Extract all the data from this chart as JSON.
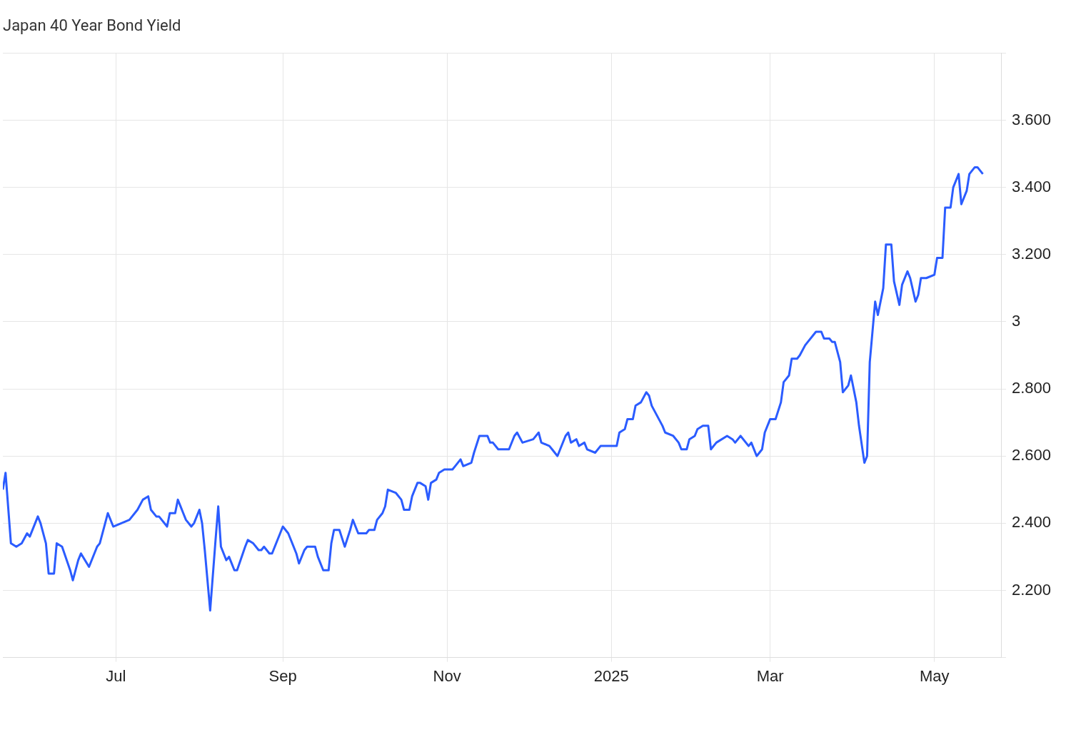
{
  "chart_data": {
    "type": "line",
    "title": "Japan 40 Year Bond Yield",
    "color": "#2b5cff",
    "marker": "none",
    "line_style": "solid",
    "grid": true,
    "xlim": [
      "2024-05-20",
      "2025-05-26"
    ],
    "xticks": [
      {
        "value": "2024-07-01",
        "label": "Jul"
      },
      {
        "value": "2024-09-01",
        "label": "Sep"
      },
      {
        "value": "2024-11-01",
        "label": "Nov"
      },
      {
        "value": "2025-01-01",
        "label": "2025"
      },
      {
        "value": "2025-03-01",
        "label": "Mar"
      },
      {
        "value": "2025-05-01",
        "label": "May"
      }
    ],
    "ylim": [
      2.0,
      3.8
    ],
    "yticks": [
      {
        "value": 2.0,
        "label": null
      },
      {
        "value": 2.2,
        "label": "2.200"
      },
      {
        "value": 2.4,
        "label": "2.400"
      },
      {
        "value": 2.6,
        "label": "2.600"
      },
      {
        "value": 2.8,
        "label": "2.800"
      },
      3,
      {
        "value": 3.2,
        "label": "3.200"
      },
      {
        "value": 3.4,
        "label": "3.400"
      },
      {
        "value": 3.6,
        "label": "3.600"
      },
      {
        "value": 3.8,
        "label": null
      }
    ],
    "x": [
      "2024-05-20",
      "2024-05-21",
      "2024-05-23",
      "2024-05-25",
      "2024-05-27",
      "2024-05-29",
      "2024-05-30",
      "2024-06-02",
      "2024-06-03",
      "2024-06-05",
      "2024-06-06",
      "2024-06-08",
      "2024-06-09",
      "2024-06-11",
      "2024-06-14",
      "2024-06-15",
      "2024-06-17",
      "2024-06-18",
      "2024-06-21",
      "2024-06-24",
      "2024-06-25",
      "2024-06-27",
      "2024-06-28",
      "2024-06-30",
      "2024-07-03",
      "2024-07-06",
      "2024-07-09",
      "2024-07-11",
      "2024-07-13",
      "2024-07-14",
      "2024-07-16",
      "2024-07-17",
      "2024-07-20",
      "2024-07-21",
      "2024-07-23",
      "2024-07-24",
      "2024-07-26",
      "2024-07-27",
      "2024-07-29",
      "2024-07-30",
      "2024-08-01",
      "2024-08-02",
      "2024-08-03",
      "2024-08-05",
      "2024-08-07",
      "2024-08-08",
      "2024-08-09",
      "2024-08-11",
      "2024-08-12",
      "2024-08-14",
      "2024-08-15",
      "2024-08-18",
      "2024-08-19",
      "2024-08-21",
      "2024-08-23",
      "2024-08-24",
      "2024-08-25",
      "2024-08-27",
      "2024-08-28",
      "2024-08-31",
      "2024-09-01",
      "2024-09-03",
      "2024-09-06",
      "2024-09-07",
      "2024-09-09",
      "2024-09-10",
      "2024-09-12",
      "2024-09-13",
      "2024-09-14",
      "2024-09-16",
      "2024-09-18",
      "2024-09-19",
      "2024-09-20",
      "2024-09-22",
      "2024-09-24",
      "2024-09-26",
      "2024-09-27",
      "2024-09-29",
      "2024-10-02",
      "2024-10-03",
      "2024-10-05",
      "2024-10-06",
      "2024-10-08",
      "2024-10-09",
      "2024-10-10",
      "2024-10-13",
      "2024-10-15",
      "2024-10-16",
      "2024-10-18",
      "2024-10-19",
      "2024-10-21",
      "2024-10-22",
      "2024-10-24",
      "2024-10-25",
      "2024-10-26",
      "2024-10-28",
      "2024-10-29",
      "2024-10-31",
      "2024-11-03",
      "2024-11-04",
      "2024-11-06",
      "2024-11-07",
      "2024-11-10",
      "2024-11-11",
      "2024-11-13",
      "2024-11-14",
      "2024-11-16",
      "2024-11-17",
      "2024-11-18",
      "2024-11-20",
      "2024-11-21",
      "2024-11-24",
      "2024-11-26",
      "2024-11-27",
      "2024-11-29",
      "2024-12-03",
      "2024-12-05",
      "2024-12-06",
      "2024-12-09",
      "2024-12-10",
      "2024-12-12",
      "2024-12-13",
      "2024-12-15",
      "2024-12-16",
      "2024-12-17",
      "2024-12-19",
      "2024-12-20",
      "2024-12-22",
      "2024-12-23",
      "2024-12-26",
      "2024-12-28",
      "2025-01-03",
      "2025-01-04",
      "2025-01-06",
      "2025-01-07",
      "2025-01-09",
      "2025-01-10",
      "2025-01-12",
      "2025-01-14",
      "2025-01-15",
      "2025-01-16",
      "2025-01-20",
      "2025-01-21",
      "2025-01-24",
      "2025-01-26",
      "2025-01-27",
      "2025-01-29",
      "2025-01-30",
      "2025-02-01",
      "2025-02-02",
      "2025-02-04",
      "2025-02-06",
      "2025-02-07",
      "2025-02-09",
      "2025-02-13",
      "2025-02-15",
      "2025-02-16",
      "2025-02-18",
      "2025-02-21",
      "2025-02-22",
      "2025-02-24",
      "2025-02-26",
      "2025-02-27",
      "2025-03-01",
      "2025-03-03",
      "2025-03-05",
      "2025-03-06",
      "2025-03-08",
      "2025-03-09",
      "2025-03-11",
      "2025-03-12",
      "2025-03-14",
      "2025-03-15",
      "2025-03-17",
      "2025-03-18",
      "2025-03-20",
      "2025-03-21",
      "2025-03-23",
      "2025-03-24",
      "2025-03-25",
      "2025-03-27",
      "2025-03-28",
      "2025-03-30",
      "2025-03-31",
      "2025-04-02",
      "2025-04-03",
      "2025-04-05",
      "2025-04-06",
      "2025-04-07",
      "2025-04-09",
      "2025-04-10",
      "2025-04-12",
      "2025-04-13",
      "2025-04-15",
      "2025-04-16",
      "2025-04-18",
      "2025-04-19",
      "2025-04-21",
      "2025-04-22",
      "2025-04-24",
      "2025-04-25",
      "2025-04-26",
      "2025-04-28",
      "2025-05-01",
      "2025-05-02",
      "2025-05-04",
      "2025-05-05",
      "2025-05-07",
      "2025-05-08",
      "2025-05-10",
      "2025-05-11",
      "2025-05-13",
      "2025-05-14",
      "2025-05-16",
      "2025-05-17",
      "2025-05-19"
    ],
    "values": [
      2.5,
      2.55,
      2.34,
      2.33,
      2.34,
      2.37,
      2.36,
      2.42,
      2.4,
      2.34,
      2.25,
      2.25,
      2.34,
      2.33,
      2.26,
      2.23,
      2.29,
      2.31,
      2.27,
      2.33,
      2.34,
      2.4,
      2.43,
      2.39,
      2.4,
      2.41,
      2.44,
      2.47,
      2.48,
      2.44,
      2.42,
      2.42,
      2.39,
      2.43,
      2.43,
      2.47,
      2.43,
      2.41,
      2.39,
      2.4,
      2.44,
      2.4,
      2.32,
      2.14,
      2.35,
      2.45,
      2.33,
      2.29,
      2.3,
      2.26,
      2.26,
      2.33,
      2.35,
      2.34,
      2.32,
      2.32,
      2.33,
      2.31,
      2.31,
      2.37,
      2.39,
      2.37,
      2.31,
      2.28,
      2.32,
      2.33,
      2.33,
      2.33,
      2.3,
      2.26,
      2.26,
      2.34,
      2.38,
      2.38,
      2.33,
      2.38,
      2.41,
      2.37,
      2.37,
      2.38,
      2.38,
      2.41,
      2.43,
      2.45,
      2.5,
      2.49,
      2.47,
      2.44,
      2.44,
      2.48,
      2.52,
      2.52,
      2.51,
      2.47,
      2.52,
      2.53,
      2.55,
      2.56,
      2.56,
      2.57,
      2.59,
      2.57,
      2.58,
      2.61,
      2.66,
      2.66,
      2.66,
      2.64,
      2.64,
      2.62,
      2.62,
      2.62,
      2.66,
      2.67,
      2.64,
      2.65,
      2.67,
      2.64,
      2.63,
      2.62,
      2.6,
      2.62,
      2.66,
      2.67,
      2.64,
      2.65,
      2.63,
      2.64,
      2.62,
      2.61,
      2.63,
      2.63,
      2.67,
      2.68,
      2.71,
      2.71,
      2.75,
      2.76,
      2.79,
      2.78,
      2.75,
      2.69,
      2.67,
      2.66,
      2.64,
      2.62,
      2.62,
      2.65,
      2.66,
      2.68,
      2.69,
      2.69,
      2.62,
      2.64,
      2.66,
      2.65,
      2.64,
      2.66,
      2.63,
      2.64,
      2.6,
      2.62,
      2.67,
      2.71,
      2.71,
      2.76,
      2.82,
      2.84,
      2.89,
      2.89,
      2.9,
      2.93,
      2.94,
      2.96,
      2.97,
      2.97,
      2.95,
      2.95,
      2.94,
      2.94,
      2.88,
      2.79,
      2.81,
      2.84,
      2.76,
      2.69,
      2.58,
      2.6,
      2.88,
      3.06,
      3.02,
      3.1,
      3.23,
      3.23,
      3.12,
      3.05,
      3.11,
      3.15,
      3.13,
      3.06,
      3.08,
      3.13,
      3.13,
      3.14,
      3.19,
      3.19,
      3.34,
      3.34,
      3.4,
      3.44,
      3.35,
      3.39,
      3.44,
      3.46,
      3.46,
      3.44
    ]
  }
}
